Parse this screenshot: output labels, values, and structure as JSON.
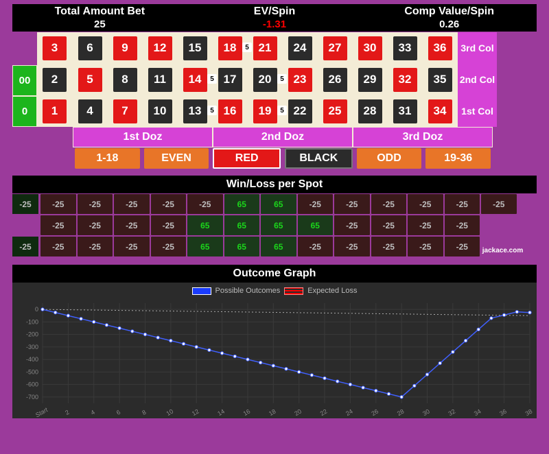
{
  "header": {
    "total_bet": {
      "label": "Total Amount Bet",
      "value": "25"
    },
    "ev": {
      "label": "EV/Spin",
      "value": "-1.31",
      "color": "#ff0000"
    },
    "comp": {
      "label": "Comp Value/Spin",
      "value": "0.26"
    }
  },
  "colors": {
    "red": "#e31818",
    "black": "#2b2b2b",
    "green": "#1cb51c",
    "felt": "#f3ecd6",
    "magenta": "#d642d6",
    "orange": "#e87528",
    "purple_bg": "#9b3a9b",
    "win_bg": "#1a3a1a",
    "win_fg": "#1bd61b",
    "loss_bg": "#3a1a1a",
    "loss_fg": "#bfbfbf"
  },
  "zeros": [
    {
      "label": "0"
    },
    {
      "label": "00"
    }
  ],
  "rows": [
    {
      "col_label": "1st Col",
      "cells": [
        {
          "n": "1",
          "c": "red"
        },
        {
          "n": "4",
          "c": "black"
        },
        {
          "n": "7",
          "c": "red"
        },
        {
          "n": "10",
          "c": "black"
        },
        {
          "n": "13",
          "c": "black",
          "chip": "5"
        },
        {
          "n": "16",
          "c": "red"
        },
        {
          "n": "19",
          "c": "red",
          "chip": "5"
        },
        {
          "n": "22",
          "c": "black"
        },
        {
          "n": "25",
          "c": "red"
        },
        {
          "n": "28",
          "c": "black"
        },
        {
          "n": "31",
          "c": "black"
        },
        {
          "n": "34",
          "c": "red"
        }
      ]
    },
    {
      "col_label": "2nd Col",
      "cells": [
        {
          "n": "2",
          "c": "black"
        },
        {
          "n": "5",
          "c": "red"
        },
        {
          "n": "8",
          "c": "black"
        },
        {
          "n": "11",
          "c": "black"
        },
        {
          "n": "14",
          "c": "red",
          "chip": "5"
        },
        {
          "n": "17",
          "c": "black"
        },
        {
          "n": "20",
          "c": "black",
          "chip": "5"
        },
        {
          "n": "23",
          "c": "red"
        },
        {
          "n": "26",
          "c": "black"
        },
        {
          "n": "29",
          "c": "black"
        },
        {
          "n": "32",
          "c": "red"
        },
        {
          "n": "35",
          "c": "black"
        }
      ]
    },
    {
      "col_label": "3rd Col",
      "cells": [
        {
          "n": "3",
          "c": "red"
        },
        {
          "n": "6",
          "c": "black"
        },
        {
          "n": "9",
          "c": "red"
        },
        {
          "n": "12",
          "c": "red"
        },
        {
          "n": "15",
          "c": "black"
        },
        {
          "n": "18",
          "c": "red",
          "chip": "5"
        },
        {
          "n": "21",
          "c": "red"
        },
        {
          "n": "24",
          "c": "black"
        },
        {
          "n": "27",
          "c": "red"
        },
        {
          "n": "30",
          "c": "red"
        },
        {
          "n": "33",
          "c": "black"
        },
        {
          "n": "36",
          "c": "red"
        }
      ]
    }
  ],
  "dozens": [
    "1st Doz",
    "2nd Doz",
    "3rd Doz"
  ],
  "outside": [
    {
      "label": "1-18",
      "style": "orange"
    },
    {
      "label": "EVEN",
      "style": "orange"
    },
    {
      "label": "RED",
      "style": "red"
    },
    {
      "label": "BLACK",
      "style": "black"
    },
    {
      "label": "ODD",
      "style": "orange"
    },
    {
      "label": "19-36",
      "style": "orange"
    }
  ],
  "winloss": {
    "title": "Win/Loss per Spot",
    "zeros": [
      "-25",
      "-25"
    ],
    "rows": [
      [
        "-25",
        "-25",
        "-25",
        "-25",
        "65",
        "65",
        "65",
        "-25",
        "-25",
        "-25",
        "-25",
        "-25"
      ],
      [
        "-25",
        "-25",
        "-25",
        "-25",
        "65",
        "65",
        "65",
        "65",
        "-25",
        "-25",
        "-25",
        "-25"
      ],
      [
        "-25",
        "-25",
        "-25",
        "-25",
        "-25",
        "65",
        "65",
        "-25",
        "-25",
        "-25",
        "-25",
        "-25"
      ]
    ],
    "watermark": "jackace.com"
  },
  "graph": {
    "title": "Outcome Graph",
    "legend": {
      "possible": "Possible Outcomes",
      "expected": "Expected Loss"
    },
    "background": "#2b2b2b",
    "grid_color": "#3a3a3a",
    "line_color": "#4060ff",
    "point_fill": "#ffffff",
    "expected_color": "#aaaaaa",
    "yticks": [
      0,
      -100,
      -200,
      -300,
      -400,
      -500,
      -600,
      -700
    ],
    "y_fontsize": 9,
    "xticks": [
      "Start",
      "2",
      "4",
      "6",
      "8",
      "10",
      "12",
      "14",
      "16",
      "18",
      "20",
      "22",
      "24",
      "26",
      "28",
      "30",
      "32",
      "34",
      "36",
      "38"
    ],
    "x_fontsize": 9,
    "ylim": [
      -750,
      50
    ],
    "possible_outcomes": [
      0,
      -25,
      -50,
      -75,
      -100,
      -125,
      -150,
      -175,
      -200,
      -225,
      -250,
      -275,
      -300,
      -325,
      -350,
      -375,
      -400,
      -425,
      -450,
      -475,
      -500,
      -525,
      -550,
      -575,
      -600,
      -625,
      -650,
      -675,
      -700,
      -610,
      -520,
      -430,
      -340,
      -250,
      -160,
      -70,
      -45,
      -20,
      -25
    ],
    "expected_loss": [
      0,
      -1.31,
      -2.63,
      -3.94,
      -5.26,
      -6.57,
      -7.89,
      -9.2,
      -10.52,
      -11.83,
      -13.15,
      -14.46,
      -15.78,
      -17.09,
      -18.41,
      -19.72,
      -21.04,
      -22.35,
      -23.67,
      -24.98,
      -26.3,
      -27.61,
      -28.93,
      -30.24,
      -31.56,
      -32.87,
      -34.19,
      -35.5,
      -36.82,
      -38.13,
      -39.45,
      -40.76,
      -42.08,
      -43.39,
      -44.71,
      -46.02,
      -47.34,
      -48.65,
      -49.97
    ]
  }
}
